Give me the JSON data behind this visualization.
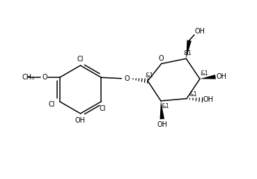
{
  "bg_color": "#ffffff",
  "line_color": "#000000",
  "lw": 1.1,
  "fs": 7.0,
  "fig_w": 3.69,
  "fig_h": 2.57,
  "dpi": 100,
  "xlim": [
    0,
    10
  ],
  "ylim": [
    0,
    7
  ]
}
